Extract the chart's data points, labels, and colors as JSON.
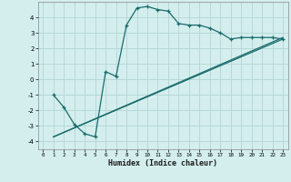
{
  "xlabel": "Humidex (Indice chaleur)",
  "bg_color": "#d4eeee",
  "line_color": "#1a6b6b",
  "grid_color": "#b8d8d8",
  "xlim": [
    -0.5,
    23.5
  ],
  "ylim": [
    -4.5,
    5.0
  ],
  "xticks": [
    0,
    1,
    2,
    3,
    4,
    5,
    6,
    7,
    8,
    9,
    10,
    11,
    12,
    13,
    14,
    15,
    16,
    17,
    18,
    19,
    20,
    21,
    22,
    23
  ],
  "yticks": [
    -4,
    -3,
    -2,
    -1,
    0,
    1,
    2,
    3,
    4
  ],
  "curve1_x": [
    1,
    2,
    3,
    4,
    5,
    6,
    7,
    8,
    9,
    10,
    11,
    12,
    13,
    14,
    15,
    16,
    17,
    18,
    19,
    20,
    21,
    22,
    23
  ],
  "curve1_y": [
    -1,
    -1.8,
    -2.9,
    -3.5,
    -3.7,
    0.5,
    0.2,
    3.5,
    4.6,
    4.7,
    4.5,
    4.4,
    3.6,
    3.5,
    3.5,
    3.3,
    3.0,
    2.6,
    2.7,
    2.7,
    2.7,
    2.7,
    2.6
  ],
  "line1_x": [
    1,
    23
  ],
  "line1_y": [
    -3.7,
    2.6
  ],
  "line2_x": [
    1,
    23
  ],
  "line2_y": [
    -3.7,
    2.7
  ]
}
